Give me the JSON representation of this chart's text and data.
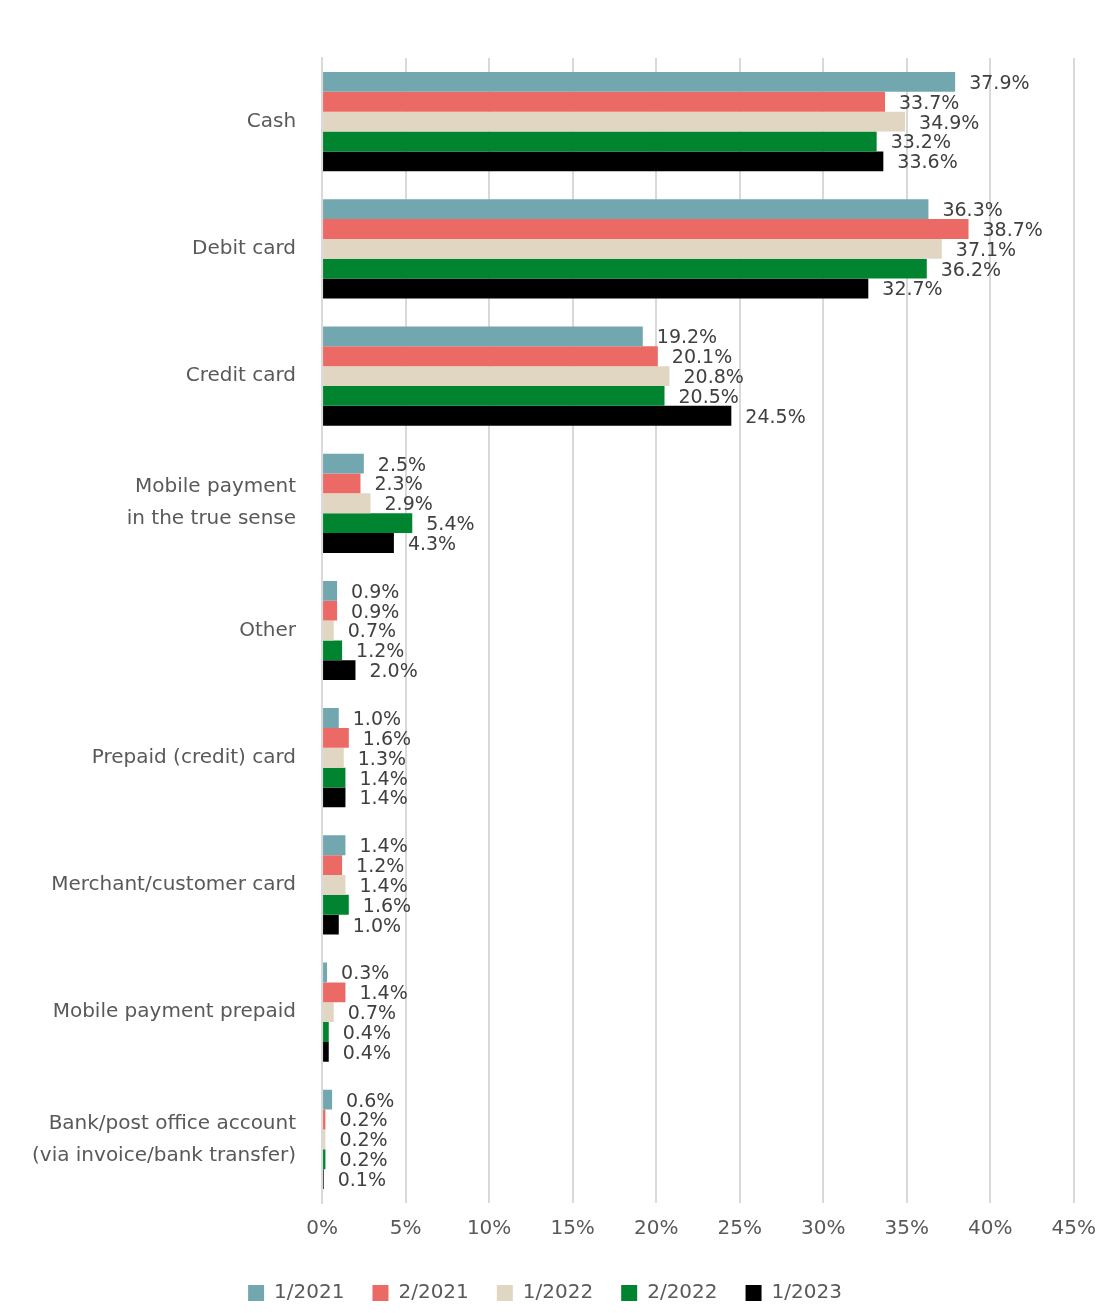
{
  "chart_data": {
    "type": "bar",
    "orientation": "horizontal",
    "categories": [
      "Cash",
      "Debit card",
      "Credit card",
      "Mobile payment\nin the true sense",
      "Other",
      "Prepaid (credit) card",
      "Merchant/customer card",
      "Mobile payment prepaid",
      "Bank/post office account\n(via invoice/bank transfer)"
    ],
    "series": [
      {
        "name": "1/2021",
        "color": "#72a7b0",
        "values": [
          37.9,
          36.3,
          19.2,
          2.5,
          0.9,
          1.0,
          1.4,
          0.3,
          0.6
        ],
        "value_labels": [
          "37.9%",
          "36.3%",
          "19.2%",
          "2.5%",
          "0.9%",
          "1.0%",
          "1.4%",
          "0.3%",
          "0.6%"
        ]
      },
      {
        "name": "2/2021",
        "color": "#ec6a66",
        "values": [
          33.7,
          38.7,
          20.1,
          2.3,
          0.9,
          1.6,
          1.2,
          1.4,
          0.2
        ],
        "value_labels": [
          "33.7%",
          "38.7%",
          "20.1%",
          "2.3%",
          "0.9%",
          "1.6%",
          "1.2%",
          "1.4%",
          "0.2%"
        ]
      },
      {
        "name": "1/2022",
        "color": "#e0d6c2",
        "values": [
          34.9,
          37.1,
          20.8,
          2.9,
          0.7,
          1.3,
          1.4,
          0.7,
          0.2
        ],
        "value_labels": [
          "34.9%",
          "37.1%",
          "20.8%",
          "2.9%",
          "0.7%",
          "1.3%",
          "1.4%",
          "0.7%",
          "0.2%"
        ]
      },
      {
        "name": "2/2022",
        "color": "#00842f",
        "values": [
          33.2,
          36.2,
          20.5,
          5.4,
          1.2,
          1.4,
          1.6,
          0.4,
          0.2
        ],
        "value_labels": [
          "33.2%",
          "36.2%",
          "20.5%",
          "5.4%",
          "1.2%",
          "1.4%",
          "1.6%",
          "0.4%",
          "0.2%"
        ]
      },
      {
        "name": "1/2023",
        "color": "#000000",
        "values": [
          33.6,
          32.7,
          24.5,
          4.3,
          2.0,
          1.4,
          1.0,
          0.4,
          0.1
        ],
        "value_labels": [
          "33.6%",
          "32.7%",
          "24.5%",
          "4.3%",
          "2.0%",
          "1.4%",
          "1.0%",
          "0.4%",
          "0.1%"
        ]
      }
    ],
    "xlim": [
      0,
      45
    ],
    "xticks": [
      {
        "value": 0,
        "label": "0%"
      },
      {
        "value": 5,
        "label": "5%"
      },
      {
        "value": 10,
        "label": "10%"
      },
      {
        "value": 15,
        "label": "15%"
      },
      {
        "value": 20,
        "label": "20%"
      },
      {
        "value": 25,
        "label": "25%"
      },
      {
        "value": 30,
        "label": "30%"
      },
      {
        "value": 35,
        "label": "35%"
      },
      {
        "value": 40,
        "label": "40%"
      },
      {
        "value": 45,
        "label": "45%"
      }
    ],
    "grid": "x",
    "legend": "bottom"
  }
}
